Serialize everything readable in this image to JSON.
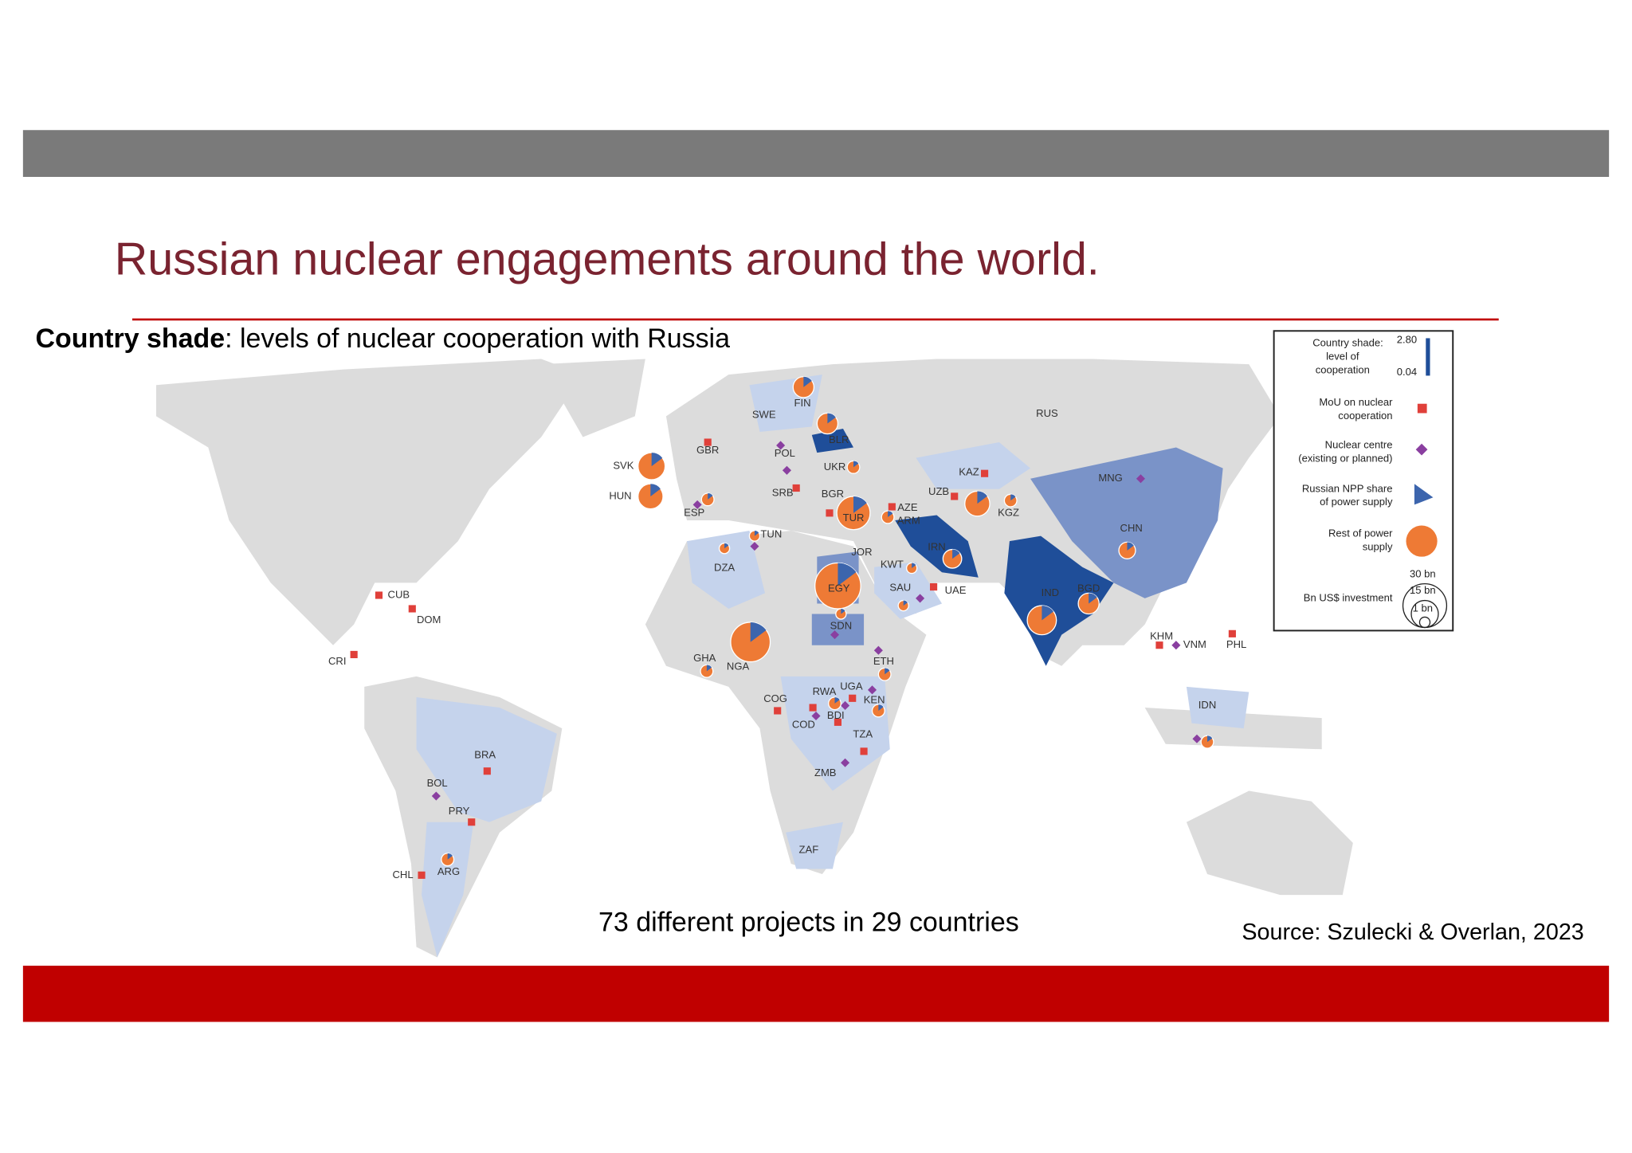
{
  "header": {
    "title": "Russian nuclear engagements around the world.",
    "subtitle_bold": "Country shade",
    "subtitle_rest": ": levels of nuclear cooperation with Russia"
  },
  "map": {
    "labels": [
      "FIN",
      "SWE",
      "GBR",
      "POL",
      "BLR",
      "UKR",
      "SVK",
      "HUN",
      "SRB",
      "BGR",
      "ESP",
      "TUR",
      "AZE",
      "ARM",
      "KAZ",
      "UZB",
      "KGZ",
      "MNG",
      "RUS",
      "CHN",
      "TUN",
      "DZA",
      "JOR",
      "IRN",
      "KWT",
      "SAU",
      "UAE",
      "EGY",
      "IND",
      "BGD",
      "SDN",
      "ETH",
      "GHA",
      "NGA",
      "COG",
      "RWA",
      "UGA",
      "KEN",
      "COD",
      "BDI",
      "TZA",
      "ZMB",
      "ZAF",
      "KHM",
      "VNM",
      "PHL",
      "IDN",
      "CUB",
      "DOM",
      "CRI",
      "BRA",
      "BOL",
      "PRY",
      "CHL",
      "ARG"
    ]
  },
  "legend": {
    "shade": [
      "Country shade:",
      "level of",
      "cooperation"
    ],
    "shade_max": "2.80",
    "shade_min": "0.04",
    "mou": [
      "MoU on nuclear",
      "cooperation"
    ],
    "centre": [
      "Nuclear centre",
      "(existing or planned)"
    ],
    "npp": [
      "Russian NPP share",
      "of power supply"
    ],
    "rest": [
      "Rest of power",
      "supply"
    ],
    "invest": "Bn US$ investment",
    "sizes": [
      "30 bn",
      "15 bn",
      "1 bn"
    ]
  },
  "footer": {
    "summary": "73 different projects in 29 countries",
    "source": "Source: Szulecki & Overlan, 2023"
  }
}
